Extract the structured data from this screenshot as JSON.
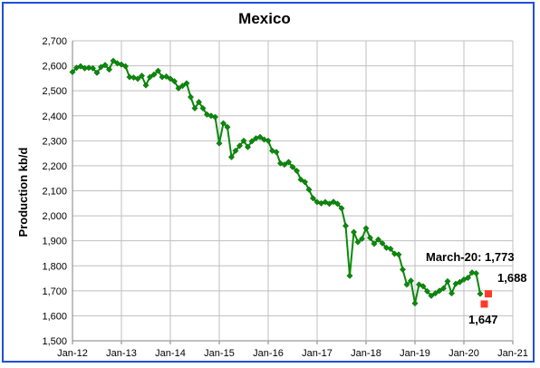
{
  "chart_data": {
    "type": "line",
    "title": "Mexico",
    "xlabel": "",
    "ylabel": "Production kb/d",
    "ylim": [
      1500,
      2700
    ],
    "yticks": [
      1500,
      1600,
      1700,
      1800,
      1900,
      2000,
      2100,
      2200,
      2300,
      2400,
      2500,
      2600,
      2700
    ],
    "ytick_labels": [
      "1,500",
      "1,600",
      "1,700",
      "1,800",
      "1,900",
      "2,000",
      "2,100",
      "2,200",
      "2,300",
      "2,400",
      "2,500",
      "2,600",
      "2,700"
    ],
    "xlim": [
      "2012-01",
      "2021-01"
    ],
    "xtick_labels": [
      "Jan-12",
      "Jan-13",
      "Jan-14",
      "Jan-15",
      "Jan-16",
      "Jan-17",
      "Jan-18",
      "Jan-19",
      "Jan-20",
      "Jan-21"
    ],
    "grid": true,
    "line_color": "#0a8a0a",
    "highlight_color": "#ff3a2a",
    "series": [
      {
        "name": "",
        "x": [
          "2012-01",
          "2012-02",
          "2012-03",
          "2012-04",
          "2012-05",
          "2012-06",
          "2012-07",
          "2012-08",
          "2012-09",
          "2012-10",
          "2012-11",
          "2012-12",
          "2013-01",
          "2013-02",
          "2013-03",
          "2013-04",
          "2013-05",
          "2013-06",
          "2013-07",
          "2013-08",
          "2013-09",
          "2013-10",
          "2013-11",
          "2013-12",
          "2014-01",
          "2014-02",
          "2014-03",
          "2014-04",
          "2014-05",
          "2014-06",
          "2014-07",
          "2014-08",
          "2014-09",
          "2014-10",
          "2014-11",
          "2014-12",
          "2015-01",
          "2015-02",
          "2015-03",
          "2015-04",
          "2015-05",
          "2015-06",
          "2015-07",
          "2015-08",
          "2015-09",
          "2015-10",
          "2015-11",
          "2015-12",
          "2016-01",
          "2016-02",
          "2016-03",
          "2016-04",
          "2016-05",
          "2016-06",
          "2016-07",
          "2016-08",
          "2016-09",
          "2016-10",
          "2016-11",
          "2016-12",
          "2017-01",
          "2017-02",
          "2017-03",
          "2017-04",
          "2017-05",
          "2017-06",
          "2017-07",
          "2017-08",
          "2017-09",
          "2017-10",
          "2017-11",
          "2017-12",
          "2018-01",
          "2018-02",
          "2018-03",
          "2018-04",
          "2018-05",
          "2018-06",
          "2018-07",
          "2018-08",
          "2018-09",
          "2018-10",
          "2018-11",
          "2018-12",
          "2019-01",
          "2019-02",
          "2019-03",
          "2019-04",
          "2019-05",
          "2019-06",
          "2019-07",
          "2019-08",
          "2019-09",
          "2019-10",
          "2019-11",
          "2019-12",
          "2020-01",
          "2020-02",
          "2020-03",
          "2020-04",
          "2020-05"
        ],
        "values": [
          2575,
          2592,
          2598,
          2590,
          2592,
          2590,
          2572,
          2595,
          2603,
          2585,
          2620,
          2610,
          2605,
          2598,
          2555,
          2553,
          2548,
          2560,
          2522,
          2555,
          2565,
          2580,
          2555,
          2557,
          2548,
          2538,
          2510,
          2520,
          2530,
          2475,
          2430,
          2455,
          2430,
          2405,
          2400,
          2395,
          2290,
          2370,
          2355,
          2235,
          2260,
          2280,
          2300,
          2275,
          2298,
          2310,
          2315,
          2305,
          2300,
          2260,
          2255,
          2210,
          2205,
          2215,
          2195,
          2180,
          2145,
          2135,
          2105,
          2070,
          2055,
          2050,
          2055,
          2048,
          2056,
          2048,
          2030,
          1960,
          1760,
          1935,
          1895,
          1908,
          1950,
          1912,
          1888,
          1905,
          1890,
          1872,
          1868,
          1848,
          1845,
          1785,
          1725,
          1740,
          1650,
          1725,
          1718,
          1698,
          1680,
          1690,
          1700,
          1710,
          1738,
          1690,
          1728,
          1735,
          1745,
          1752,
          1773,
          1770,
          1688
        ]
      },
      {
        "name": "",
        "x": [
          "2020-06",
          "2020-07"
        ],
        "values": [
          1647,
          1688
        ]
      }
    ],
    "annotations": [
      {
        "text": "March-20: 1,773"
      },
      {
        "text": "1,688"
      },
      {
        "text": "1,647"
      }
    ]
  }
}
